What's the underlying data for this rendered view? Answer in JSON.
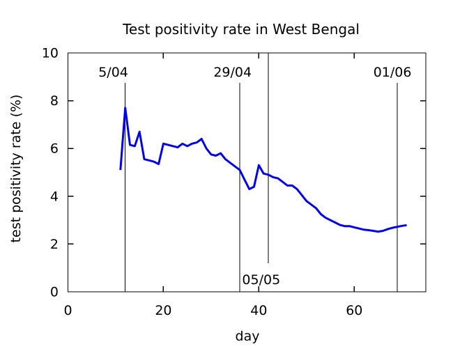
{
  "chart_data": {
    "type": "line",
    "title": "Test positivity rate in West Bengal",
    "xlabel": "day",
    "ylabel": "test positivity rate (%)",
    "xlim": [
      0,
      75
    ],
    "ylim": [
      0,
      10
    ],
    "xticks": [
      0,
      20,
      40,
      60
    ],
    "yticks": [
      0,
      2,
      4,
      6,
      8,
      10
    ],
    "grid": false,
    "legend_position": "none",
    "line_color": "#0000ee",
    "axis_color": "#000000",
    "series": [
      {
        "name": "test positivity rate (%)",
        "x": [
          11,
          12,
          13,
          14,
          15,
          16,
          17,
          18,
          19,
          20,
          21,
          22,
          23,
          24,
          25,
          26,
          27,
          28,
          29,
          30,
          31,
          32,
          33,
          34,
          35,
          36,
          37,
          38,
          39,
          40,
          41,
          42,
          43,
          44,
          45,
          46,
          47,
          48,
          49,
          50,
          51,
          52,
          53,
          54,
          55,
          56,
          57,
          58,
          59,
          60,
          61,
          62,
          63,
          64,
          65,
          66,
          67,
          68,
          69,
          70,
          71
        ],
        "y": [
          5.1,
          7.7,
          6.15,
          6.1,
          6.7,
          5.55,
          5.5,
          5.45,
          5.35,
          6.2,
          6.15,
          6.1,
          6.05,
          6.2,
          6.1,
          6.2,
          6.25,
          6.4,
          6.0,
          5.75,
          5.7,
          5.8,
          5.55,
          5.4,
          5.25,
          5.1,
          4.7,
          4.3,
          4.4,
          5.3,
          4.95,
          4.9,
          4.8,
          4.75,
          4.6,
          4.45,
          4.45,
          4.3,
          4.05,
          3.8,
          3.65,
          3.5,
          3.25,
          3.1,
          3.0,
          2.9,
          2.8,
          2.75,
          2.75,
          2.7,
          2.65,
          2.6,
          2.58,
          2.55,
          2.52,
          2.55,
          2.62,
          2.68,
          2.72,
          2.76,
          2.79
        ]
      }
    ],
    "annotations": [
      {
        "label": "5/04",
        "line_day": 12,
        "line_from": 0,
        "line_to": 8.75,
        "label_day": 9.5,
        "label_pos": "above"
      },
      {
        "label": "29/04",
        "line_day": 36,
        "line_from": 0,
        "line_to": 8.75,
        "label_day": 34.5,
        "label_pos": "above"
      },
      {
        "label": "05/05",
        "line_day": 42,
        "line_from": 10,
        "line_to": 1.2,
        "label_day": 40.5,
        "label_pos": "below"
      },
      {
        "label": "01/06",
        "line_day": 69,
        "line_from": 0,
        "line_to": 8.75,
        "label_day": 68,
        "label_pos": "above"
      }
    ]
  }
}
